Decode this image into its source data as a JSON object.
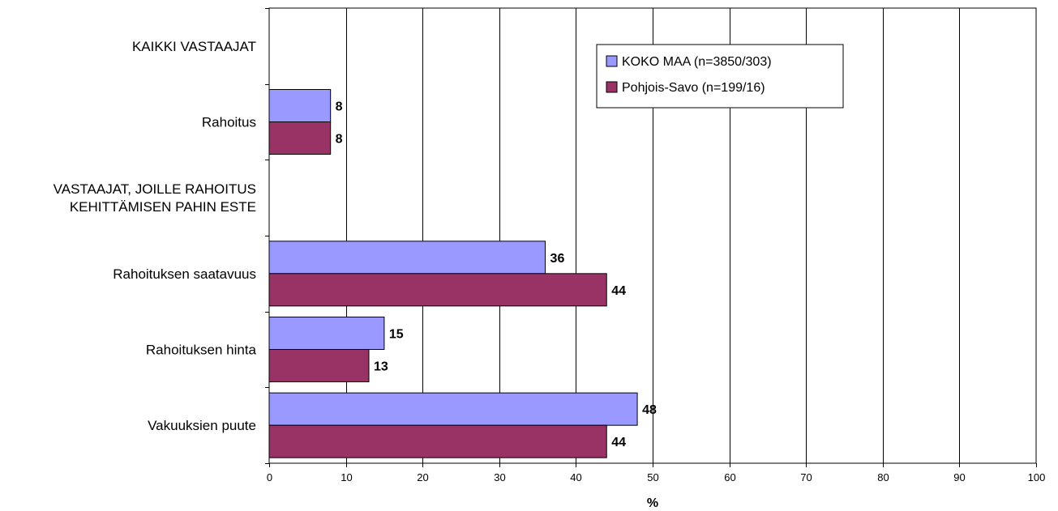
{
  "chart_data": {
    "type": "bar",
    "orientation": "horizontal",
    "categories": [
      {
        "lines": [
          "KAIKKI VASTAAJAT"
        ],
        "has_bars": false
      },
      {
        "lines": [
          "Rahoitus"
        ],
        "has_bars": true
      },
      {
        "lines": [
          "VASTAAJAT, JOILLE RAHOITUS",
          "KEHITTÄMISEN PAHIN ESTE"
        ],
        "has_bars": false
      },
      {
        "lines": [
          "Rahoituksen saatavuus"
        ],
        "has_bars": true
      },
      {
        "lines": [
          "Rahoituksen hinta"
        ],
        "has_bars": true
      },
      {
        "lines": [
          "Vakuuksien puute"
        ],
        "has_bars": true
      }
    ],
    "series": [
      {
        "name": "KOKO MAA (n=3850/303)",
        "color": "#9999ff",
        "values": [
          null,
          8,
          null,
          36,
          15,
          48
        ]
      },
      {
        "name": "Pohjois-Savo (n=199/16)",
        "color": "#993366",
        "values": [
          null,
          8,
          null,
          44,
          13,
          44
        ]
      }
    ],
    "xlabel": "%",
    "xlim": [
      0,
      100
    ],
    "xticks": [
      0,
      10,
      20,
      30,
      40,
      50,
      60,
      70,
      80,
      90,
      100
    ],
    "grid": "vertical",
    "legend_position": "top-right"
  }
}
